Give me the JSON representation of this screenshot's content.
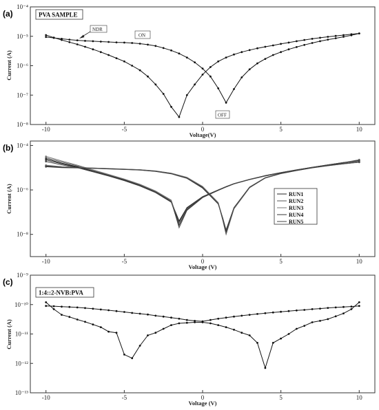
{
  "chart_data": [
    {
      "panel": "(a)",
      "type": "line",
      "inset_label": "PVA SAMPLE",
      "xlabel": "Voltage(V)",
      "ylabel": "Current (A)",
      "xlim": [
        -11,
        11
      ],
      "ylim_log10": [
        -8,
        -4
      ],
      "y_scale": "log",
      "x_ticks": [
        -10,
        -5,
        0,
        5,
        10
      ],
      "x_tick_labels": [
        "-10",
        "-5",
        "0",
        "5",
        "10"
      ],
      "y_ticks": [
        -8,
        -7,
        -6,
        -5,
        -4
      ],
      "y_tick_labels": [
        "10⁻⁸",
        "10⁻⁷",
        "10⁻⁶",
        "10⁻⁵",
        "10⁻⁴"
      ],
      "annotations": [
        {
          "text": "NDR",
          "x": -7.5,
          "y": 1.8e-05
        },
        {
          "text": "ON",
          "x": -3.9,
          "y": 1.05e-05
        },
        {
          "text": "OFF",
          "x": 1.25,
          "y": 2.8e-08
        }
      ],
      "series": [
        {
          "x": [
            -10,
            -9.5,
            -9,
            -8.5,
            -8,
            -7.5,
            -7,
            -6.5,
            -6,
            -5.5,
            -5,
            -4.5,
            -4,
            -3.5,
            -3,
            -2.5,
            -2,
            -1.5,
            -1,
            -0.5,
            0,
            0.5,
            1,
            1.5,
            2,
            2.5,
            3,
            3.5,
            4,
            4.5,
            5,
            5.5,
            6,
            6.5,
            7,
            7.5,
            8,
            8.5,
            9,
            9.5,
            10
          ],
          "y": [
            1.1e-05,
            9e-06,
            7.5e-06,
            6.3e-06,
            5.3e-06,
            4.4e-06,
            3.6e-06,
            2.9e-06,
            2.3e-06,
            1.8e-06,
            1.4e-06,
            1e-06,
            7e-07,
            4.3e-07,
            2.3e-07,
            1.1e-07,
            4e-08,
            1.8e-08,
            1e-07,
            2.3e-07,
            5e-07,
            9e-07,
            1.4e-06,
            1.9e-06,
            2.4e-06,
            2.9e-06,
            3.4e-06,
            3.9e-06,
            4.4e-06,
            4.9e-06,
            5.5e-06,
            6.1e-06,
            6.8e-06,
            7.5e-06,
            8.2e-06,
            8.9e-06,
            9.6e-06,
            1.03e-05,
            1.1e-05,
            1.17e-05,
            1.25e-05
          ]
        },
        {
          "x": [
            -10,
            -9.5,
            -9,
            -8.5,
            -8,
            -7.5,
            -7,
            -6.5,
            -6,
            -5.5,
            -5,
            -4.5,
            -4,
            -3.5,
            -3,
            -2.5,
            -2,
            -1.5,
            -1,
            -0.5,
            0,
            0.5,
            1,
            1.5,
            2,
            2.5,
            3,
            3.5,
            4,
            4.5,
            5,
            5.5,
            6,
            6.5,
            7,
            7.5,
            8,
            8.5,
            9,
            9.5,
            10
          ],
          "y": [
            9.5e-06,
            8.8e-06,
            8.2e-06,
            7.7e-06,
            7.3e-06,
            7e-06,
            6.8e-06,
            6.6e-06,
            6.4e-06,
            6.2e-06,
            6.1e-06,
            5.9e-06,
            5.6e-06,
            5.2e-06,
            4.7e-06,
            4e-06,
            3.3e-06,
            2.6e-06,
            1.9e-06,
            1.3e-06,
            8e-07,
            4.3e-07,
            1.7e-07,
            5.5e-08,
            1.6e-07,
            4e-07,
            7.5e-07,
            1.2e-06,
            1.7e-06,
            2.3e-06,
            2.9e-06,
            3.6e-06,
            4.3e-06,
            5.1e-06,
            5.9e-06,
            6.8e-06,
            7.7e-06,
            8.6e-06,
            9.6e-06,
            1.08e-05,
            1.25e-05
          ]
        }
      ]
    },
    {
      "panel": "(b)",
      "type": "line",
      "xlabel": "Voltage (V)",
      "ylabel": "Current (A)",
      "xlim": [
        -11,
        11
      ],
      "ylim_log10": [
        -9,
        -3.8
      ],
      "y_scale": "log",
      "x_ticks": [
        -10,
        -5,
        0,
        5,
        10
      ],
      "x_tick_labels": [
        "-10",
        "-5",
        "0",
        "5",
        "10"
      ],
      "y_ticks": [
        -8,
        -6,
        -4
      ],
      "y_tick_labels": [
        "10⁻⁸",
        "10⁻⁶",
        "10⁻⁴"
      ],
      "legend": {
        "position": "right",
        "entries": [
          "RUN1",
          "RUN2",
          "RUN3",
          "RUN4",
          "RUN5"
        ]
      },
      "series": [
        {
          "name": "RUN1",
          "branch_high": {
            "x": [
              -10,
              -9,
              -8,
              -7,
              -6,
              -5,
              -4,
              -3,
              -2,
              -1.5,
              -1,
              0,
              1,
              1.5,
              2,
              3,
              4,
              5,
              6,
              7,
              8,
              9,
              10
            ],
            "y": [
              2.5e-05,
              1.6e-05,
              1.1e-05,
              7e-06,
              4.5e-06,
              2.8e-06,
              1.6e-06,
              8e-07,
              3e-07,
              4e-08,
              1.6e-07,
              5e-07,
              1e-06,
              1.4e-06,
              1.9e-06,
              3e-06,
              4.4e-06,
              6e-06,
              8e-06,
              1.05e-05,
              1.35e-05,
              1.7e-05,
              2.1e-05
            ]
          },
          "branch_low": {
            "x": [
              -10,
              -9,
              -8,
              -7,
              -6,
              -5,
              -4,
              -3,
              -2,
              -1,
              0,
              1,
              1.3,
              1.5,
              2,
              3,
              4,
              5,
              6,
              7,
              8,
              9,
              10
            ],
            "y": [
              1.2e-05,
              1.05e-05,
              1e-05,
              9.5e-06,
              9e-06,
              8.5e-06,
              8e-06,
              7e-06,
              5.5e-06,
              3.5e-06,
              1.3e-06,
              2.5e-07,
              5e-08,
              1.4e-08,
              1.5e-07,
              1.3e-06,
              3.5e-06,
              5.5e-06,
              7.5e-06,
              1e-05,
              1.25e-05,
              1.5e-05,
              1.8e-05
            ]
          }
        },
        {
          "name": "RUN2",
          "branch_high": {
            "x": [
              -10,
              -9,
              -8,
              -7,
              -6,
              -5,
              -4,
              -3,
              -2,
              -1.5,
              -1,
              0,
              1,
              1.5,
              2,
              3,
              4,
              5,
              6,
              7,
              8,
              9,
              10
            ],
            "y": [
              2.8e-05,
              1.8e-05,
              1.2e-05,
              7.5e-06,
              4.8e-06,
              3e-06,
              1.7e-06,
              8.5e-07,
              3.3e-07,
              2e-08,
              1.2e-07,
              4.5e-07,
              9.5e-07,
              1.35e-06,
              1.85e-06,
              2.9e-06,
              4.2e-06,
              5.8e-06,
              7.8e-06,
              1e-05,
              1.3e-05,
              1.65e-05,
              2.2e-05
            ]
          },
          "branch_low": {
            "x": [
              -10,
              -9,
              -8,
              -7,
              -6,
              -5,
              -4,
              -3,
              -2,
              -1,
              0,
              1,
              1.3,
              1.5,
              2,
              3,
              4,
              5,
              6,
              7,
              8,
              9,
              10
            ],
            "y": [
              1.25e-05,
              1.1e-05,
              1.02e-05,
              9.6e-06,
              9.1e-06,
              8.6e-06,
              8.1e-06,
              7.1e-06,
              5.6e-06,
              3.6e-06,
              1.4e-06,
              2.6e-07,
              4e-08,
              1e-08,
              1.4e-07,
              1.25e-06,
              3.4e-06,
              5.4e-06,
              7.4e-06,
              9.8e-06,
              1.22e-05,
              1.48e-05,
              1.75e-05
            ]
          }
        },
        {
          "name": "RUN3",
          "branch_high": {
            "x": [
              -10,
              -9,
              -8,
              -7,
              -6,
              -5,
              -4,
              -3,
              -2,
              -1.5,
              -1,
              0,
              1,
              1.5,
              2,
              3,
              4,
              5,
              6,
              7,
              8,
              9,
              10
            ],
            "y": [
              3.2e-05,
              2e-05,
              1.3e-05,
              8e-06,
              5e-06,
              3.1e-06,
              1.8e-06,
              9e-07,
              3.5e-07,
              3e-08,
              1.4e-07,
              4.8e-07,
              9.8e-07,
              1.4e-06,
              1.9e-06,
              3e-06,
              4.3e-06,
              5.9e-06,
              7.9e-06,
              1.02e-05,
              1.32e-05,
              1.68e-05,
              2.3e-05
            ]
          },
          "branch_low": {
            "x": [
              -10,
              -9,
              -8,
              -7,
              -6,
              -5,
              -4,
              -3,
              -2,
              -1,
              0,
              1,
              1.3,
              1.5,
              2,
              3,
              4,
              5,
              6,
              7,
              8,
              9,
              10
            ],
            "y": [
              1.3e-05,
              1.12e-05,
              1.03e-05,
              9.7e-06,
              9.2e-06,
              8.7e-06,
              8.2e-06,
              7.2e-06,
              5.7e-06,
              3.7e-06,
              1.45e-06,
              2.7e-07,
              4.5e-08,
              1.2e-08,
              1.45e-07,
              1.28e-06,
              3.45e-06,
              5.45e-06,
              7.45e-06,
              9.9e-06,
              1.23e-05,
              1.5e-05,
              1.78e-05
            ]
          }
        },
        {
          "name": "RUN4",
          "branch_high": {
            "x": [
              -10,
              -9,
              -8,
              -7,
              -6,
              -5,
              -4,
              -3,
              -2,
              -1.5,
              -1,
              0,
              1,
              1.5,
              2,
              3,
              4,
              5,
              6,
              7,
              8,
              9,
              10
            ],
            "y": [
              2.2e-05,
              1.5e-05,
              1.05e-05,
              6.8e-06,
              4.4e-06,
              2.7e-06,
              1.55e-06,
              7.8e-07,
              2.9e-07,
              2.5e-08,
              1.3e-07,
              4.7e-07,
              9.7e-07,
              1.38e-06,
              1.88e-06,
              2.95e-06,
              4.3e-06,
              5.9e-06,
              7.9e-06,
              1.03e-05,
              1.33e-05,
              1.68e-05,
              2.05e-05
            ]
          },
          "branch_low": {
            "x": [
              -10,
              -9,
              -8,
              -7,
              -6,
              -5,
              -4,
              -3,
              -2,
              -1,
              0,
              1,
              1.3,
              1.5,
              2,
              3,
              4,
              5,
              6,
              7,
              8,
              9,
              10
            ],
            "y": [
              1.15e-05,
              1.03e-05,
              9.9e-06,
              9.4e-06,
              8.9e-06,
              8.4e-06,
              7.9e-06,
              6.9e-06,
              5.4e-06,
              3.4e-06,
              1.25e-06,
              2.4e-07,
              4.8e-08,
              1.3e-08,
              1.55e-07,
              1.32e-06,
              3.5e-06,
              5.5e-06,
              7.5e-06,
              1e-05,
              1.24e-05,
              1.52e-05,
              1.82e-05
            ]
          }
        },
        {
          "name": "RUN5",
          "branch_high": {
            "x": [
              -10,
              -9,
              -8,
              -7,
              -6,
              -5,
              -4,
              -3,
              -2,
              -1.5,
              -1,
              0,
              1,
              1.5,
              2,
              3,
              4,
              5,
              6,
              7,
              8,
              9,
              10
            ],
            "y": [
              1.9e-05,
              1.35e-05,
              1e-05,
              6.5e-06,
              4.2e-06,
              2.6e-06,
              1.5e-06,
              7.5e-07,
              2.8e-07,
              3.5e-08,
              1.5e-07,
              4.9e-07,
              1e-06,
              1.42e-06,
              1.92e-06,
              3e-06,
              4.4e-06,
              6e-06,
              8e-06,
              1.04e-05,
              1.34e-05,
              1.7e-05,
              2.15e-05
            ]
          },
          "branch_low": {
            "x": [
              -10,
              -9,
              -8,
              -7,
              -6,
              -5,
              -4,
              -3,
              -2,
              -1,
              0,
              1,
              1.3,
              1.5,
              2,
              3,
              4,
              5,
              6,
              7,
              8,
              9,
              10
            ],
            "y": [
              1.1e-05,
              1e-05,
              9.8e-06,
              9.3e-06,
              8.8e-06,
              8.3e-06,
              7.8e-06,
              6.8e-06,
              5.3e-06,
              3.3e-06,
              1.2e-06,
              2.3e-07,
              5.2e-08,
              1.6e-08,
              1.6e-07,
              1.35e-06,
              3.55e-06,
              5.55e-06,
              7.55e-06,
              1.01e-05,
              1.25e-05,
              1.53e-05,
              1.85e-05
            ]
          }
        }
      ]
    },
    {
      "panel": "(c)",
      "type": "line",
      "inset_label": "1:4::2-NVB:PVA",
      "xlabel": "Voltage (V)",
      "ylabel": "Current (A)",
      "xlim": [
        -11,
        11
      ],
      "ylim_log10": [
        -13,
        -9
      ],
      "y_scale": "log",
      "x_ticks": [
        -10,
        -5,
        0,
        5,
        10
      ],
      "x_tick_labels": [
        "-10",
        "-5",
        "0",
        "5",
        "10"
      ],
      "y_ticks": [
        -13,
        -12,
        -11,
        -10,
        -9
      ],
      "y_tick_labels": [
        "10⁻¹³",
        "10⁻¹²",
        "10⁻¹¹",
        "10⁻¹⁰",
        "10⁻⁹"
      ],
      "series": [
        {
          "x": [
            -10,
            -9.5,
            -9,
            -8.5,
            -8,
            -7.5,
            -7,
            -6.5,
            -6,
            -5.5,
            -5,
            -4.5,
            -4,
            -3.5,
            -3,
            -2.5,
            -2,
            -1.5,
            -1,
            -0.5,
            0,
            0.5,
            1,
            1.5,
            2,
            2.5,
            3,
            3.5,
            4,
            4.5,
            5,
            5.5,
            6,
            6.5,
            7,
            7.5,
            8,
            8.5,
            9,
            9.5,
            10
          ],
          "y": [
            1.2e-10,
            7e-11,
            4.5e-11,
            3.8e-11,
            3.1e-11,
            2.6e-11,
            2.1e-11,
            1.7e-11,
            1.2e-11,
            1.1e-11,
            2e-12,
            1.5e-12,
            4e-12,
            9e-12,
            1.1e-11,
            1.5e-11,
            2e-11,
            2.3e-11,
            2.4e-11,
            2.5e-11,
            2.5e-11,
            2.3e-11,
            2e-11,
            1.7e-11,
            1.4e-11,
            1.1e-11,
            9e-12,
            5e-12,
            7e-13,
            5e-12,
            7e-12,
            1e-11,
            1.5e-11,
            1.9e-11,
            2.5e-11,
            2.8e-11,
            3.2e-11,
            4e-11,
            5e-11,
            7e-11,
            1.2e-10
          ]
        },
        {
          "x": [
            -10,
            -9.5,
            -9,
            -8.5,
            -8,
            -7.5,
            -7,
            -6.5,
            -6,
            -5.5,
            -5,
            -4.5,
            -4,
            -3.5,
            -3,
            -2.5,
            -2,
            -1.5,
            -1,
            -0.5,
            0,
            0.5,
            1,
            1.5,
            2,
            2.5,
            3,
            3.5,
            4,
            4.5,
            5,
            5.5,
            6,
            6.5,
            7,
            7.5,
            8,
            8.5,
            9,
            9.5,
            10
          ],
          "y": [
            9e-11,
            8.8e-11,
            8.5e-11,
            8.3e-11,
            8e-11,
            7.6e-11,
            7.2e-11,
            6.8e-11,
            6.4e-11,
            6e-11,
            5.6e-11,
            5.2e-11,
            4.9e-11,
            4.6e-11,
            4.2e-11,
            3.9e-11,
            3.6e-11,
            3.3e-11,
            3e-11,
            2.8e-11,
            2.7e-11,
            3e-11,
            3.3e-11,
            3.6e-11,
            3.9e-11,
            4.2e-11,
            4.5e-11,
            4.8e-11,
            5.1e-11,
            5.4e-11,
            5.7e-11,
            6e-11,
            6.3e-11,
            6.6e-11,
            7e-11,
            7.3e-11,
            7.7e-11,
            8e-11,
            8.3e-11,
            8.6e-11,
            9e-11
          ]
        }
      ]
    }
  ]
}
